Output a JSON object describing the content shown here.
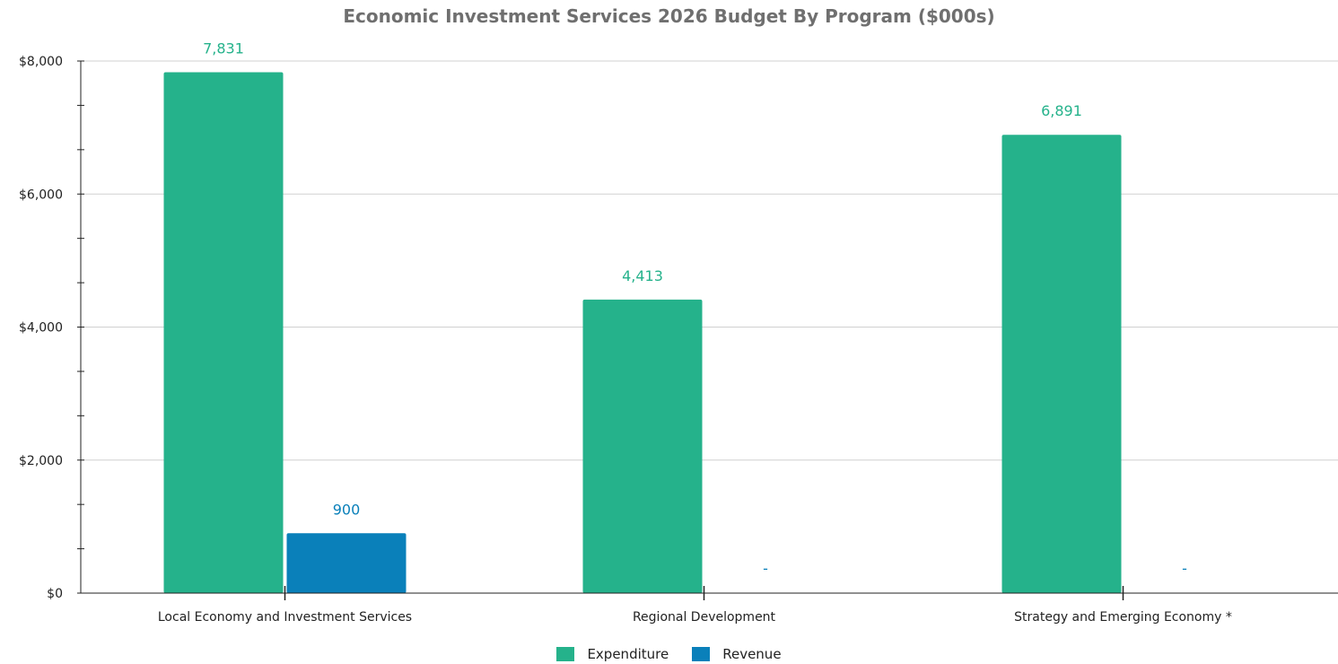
{
  "chart_data": {
    "type": "bar",
    "title": "Economic Investment Services 2026 Budget By Program ($000s)",
    "categories": [
      "Local Economy and Investment Services",
      "Regional Development",
      "Strategy and Emerging Economy *"
    ],
    "series": [
      {
        "name": "Expenditure",
        "color": "#25b28b",
        "values": [
          7831,
          4413,
          6891
        ],
        "labels": [
          "7,831",
          "4,413",
          "6,891"
        ]
      },
      {
        "name": "Revenue",
        "color": "#0a80ba",
        "values": [
          900,
          0,
          0
        ],
        "labels": [
          "900",
          "-",
          "-"
        ]
      }
    ],
    "ylim": [
      0,
      8000
    ],
    "y_ticks": [
      0,
      2000,
      4000,
      6000,
      8000
    ],
    "y_tick_labels": [
      "$0",
      "$2,000",
      "$4,000",
      "$6,000",
      "$8,000"
    ],
    "xlabel": "",
    "ylabel": "",
    "grid": true,
    "legend_position": "bottom-center"
  }
}
